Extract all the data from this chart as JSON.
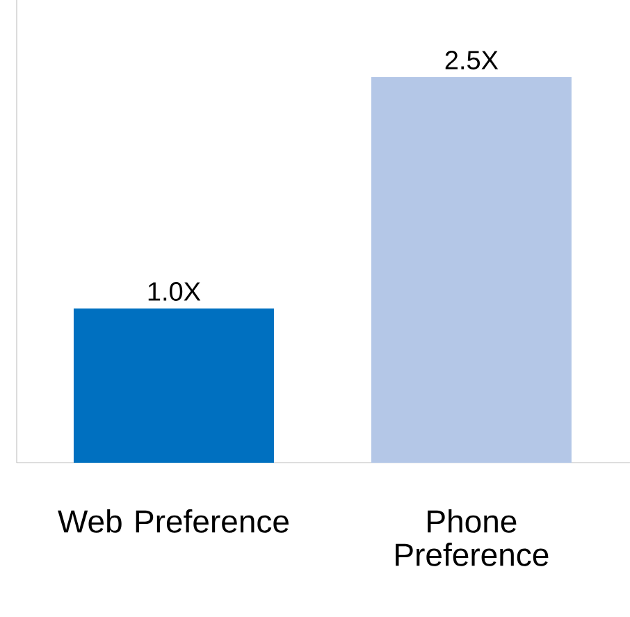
{
  "chart_data": {
    "type": "bar",
    "categories": [
      "Web Preference",
      "Phone Preference"
    ],
    "values": [
      1.0,
      2.5
    ],
    "value_labels": [
      "1.0X",
      "2.5X"
    ],
    "colors": [
      "#0070c0",
      "#b4c7e7"
    ],
    "ylim": [
      0,
      3
    ]
  }
}
